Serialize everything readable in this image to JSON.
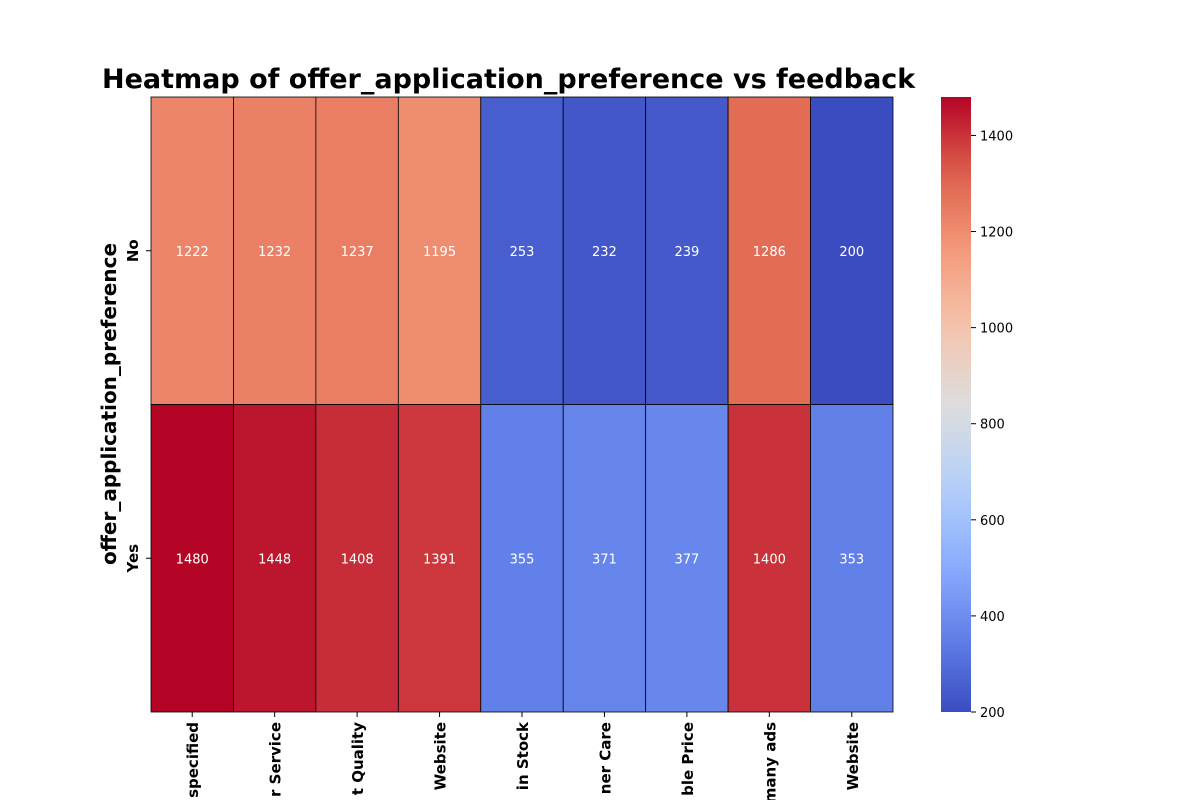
{
  "chart_data": {
    "type": "heatmap",
    "title": "Heatmap of offer_application_preference vs feedback",
    "ylabel": "offer_application_preference",
    "xlabel": "",
    "rows": [
      "No",
      "Yes"
    ],
    "columns": [
      "specified",
      "r Service",
      "t Quality",
      "Website",
      "in Stock",
      "ner Care",
      "ble Price",
      "many ads",
      "Website"
    ],
    "values": [
      [
        1222,
        1232,
        1237,
        1195,
        253,
        232,
        239,
        1286,
        200
      ],
      [
        1480,
        1448,
        1408,
        1391,
        355,
        371,
        377,
        1400,
        353
      ]
    ],
    "colormap": "coolwarm",
    "colorbar": {
      "min": 200,
      "max": 1480,
      "ticks": [
        200,
        400,
        600,
        800,
        1000,
        1200,
        1400
      ]
    }
  }
}
